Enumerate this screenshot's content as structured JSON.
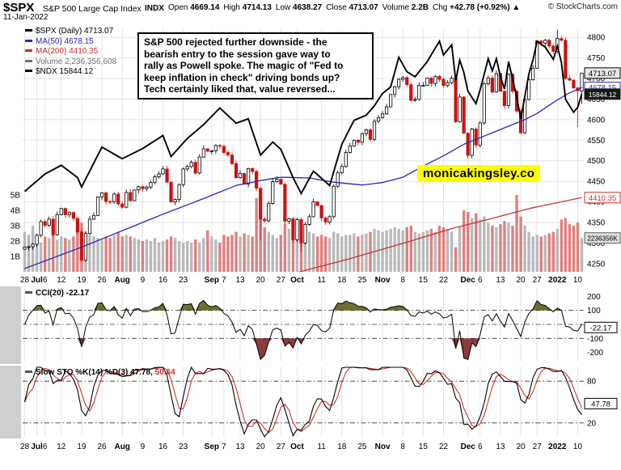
{
  "header": {
    "symbol": "$SPX",
    "index_name": "S&P 500 Large Cap Index",
    "exchange": "INDX",
    "date": "11-Jan-2022",
    "copyright": "© StockCharts.com",
    "quote_fields": [
      {
        "label": "Open",
        "value": "4669.14"
      },
      {
        "label": "High",
        "value": "4714.13"
      },
      {
        "label": "Low",
        "value": "4638.27"
      },
      {
        "label": "Close",
        "value": "4713.07"
      },
      {
        "label": "Volume",
        "value": "2.2B"
      },
      {
        "label": "Chg",
        "value": "+42.78 (+0.92%) ▲"
      }
    ]
  },
  "legend_rows": [
    {
      "label": "$SPX (Daily) 4713.07",
      "color": "#000000"
    },
    {
      "label": "MA(50) 4678.15",
      "color": "#2828b4"
    },
    {
      "label": "MA(200) 4410.35",
      "color": "#c83232"
    },
    {
      "label": "Volume 2,236,356,608",
      "color": "#707070"
    },
    {
      "label": "$NDX 15844.12",
      "color": "#000000"
    }
  ],
  "annotation": {
    "text_lines": [
      "S&P 500 rejected further downside - the",
      "bearish entry to the session gave way to",
      "rally as Powell spoke. The magic of \"Fed to",
      "keep inflation in check\" driving bonds up?",
      "Tech certainly liked that, value reversed..."
    ]
  },
  "watermark": {
    "text": "monicakingsley.co",
    "bg": "#ffff00"
  },
  "colors": {
    "up_candle": "#ffffff",
    "down_candle": "#cc1111",
    "ma50": "#2828b4",
    "ma200": "#c83232",
    "ndx": "#000000",
    "vol_up": "#b9b9b9",
    "vol_down": "#e07f7f",
    "grid": "#e4e4e4",
    "gutter": "#cfcfcf",
    "cci_fill_high": "#6f6f2c",
    "cci_fill_low": "#8c3a3a",
    "sto_k": "#000000",
    "sto_d": "#d23030"
  },
  "chart_data": [
    {
      "type": "candlestick",
      "title": "$SPX daily candlesticks with MA(50), MA(200), $NDX overlay and volume",
      "price_range": [
        4230,
        4820
      ],
      "y_ticks": [
        4250,
        4300,
        4350,
        4400,
        4450,
        4500,
        4550,
        4600,
        4650,
        4700,
        4750,
        4800
      ],
      "volume_ticks": [
        "1B",
        "2B",
        "3B",
        "4B",
        "5B"
      ],
      "x_ticks": [
        {
          "i": 0,
          "label": "28",
          "bold": false
        },
        {
          "i": 3,
          "label": "Jul",
          "bold": true
        },
        {
          "i": 5,
          "label": "6",
          "bold": false
        },
        {
          "i": 9,
          "label": "12",
          "bold": false
        },
        {
          "i": 14,
          "label": "19",
          "bold": false
        },
        {
          "i": 19,
          "label": "26",
          "bold": false
        },
        {
          "i": 24,
          "label": "Aug",
          "bold": true
        },
        {
          "i": 29,
          "label": "9",
          "bold": false
        },
        {
          "i": 34,
          "label": "16",
          "bold": false
        },
        {
          "i": 39,
          "label": "23",
          "bold": false
        },
        {
          "i": 46,
          "label": "Sep",
          "bold": true
        },
        {
          "i": 49,
          "label": "7",
          "bold": false
        },
        {
          "i": 53,
          "label": "13",
          "bold": false
        },
        {
          "i": 58,
          "label": "20",
          "bold": false
        },
        {
          "i": 63,
          "label": "27",
          "bold": false
        },
        {
          "i": 67,
          "label": "Oct",
          "bold": true
        },
        {
          "i": 73,
          "label": "11",
          "bold": false
        },
        {
          "i": 78,
          "label": "18",
          "bold": false
        },
        {
          "i": 83,
          "label": "25",
          "bold": false
        },
        {
          "i": 88,
          "label": "Nov",
          "bold": true
        },
        {
          "i": 93,
          "label": "8",
          "bold": false
        },
        {
          "i": 98,
          "label": "15",
          "bold": false
        },
        {
          "i": 103,
          "label": "22",
          "bold": false
        },
        {
          "i": 109,
          "label": "Dec",
          "bold": true
        },
        {
          "i": 112,
          "label": "6",
          "bold": false
        },
        {
          "i": 117,
          "label": "13",
          "bold": false
        },
        {
          "i": 122,
          "label": "20",
          "bold": false
        },
        {
          "i": 126,
          "label": "27",
          "bold": false
        },
        {
          "i": 131,
          "label": "2022",
          "bold": true
        },
        {
          "i": 136,
          "label": "10",
          "bold": false
        }
      ],
      "close": [
        4290,
        4291,
        4297,
        4319,
        4352,
        4343,
        4358,
        4320,
        4369,
        4384,
        4369,
        4374,
        4360,
        4327,
        4258,
        4323,
        4358,
        4367,
        4412,
        4422,
        4401,
        4400,
        4419,
        4395,
        4387,
        4423,
        4403,
        4429,
        4437,
        4432,
        4436,
        4447,
        4461,
        4468,
        4480,
        4448,
        4400,
        4406,
        4442,
        4480,
        4486,
        4496,
        4470,
        4509,
        4529,
        4523,
        4524,
        4537,
        4535,
        4520,
        4514,
        4493,
        4459,
        4469,
        4443,
        4481,
        4474,
        4433,
        4358,
        4354,
        4396,
        4449,
        4455,
        4443,
        4353,
        4359,
        4308,
        4357,
        4300,
        4345,
        4364,
        4400,
        4391,
        4361,
        4351,
        4364,
        4438,
        4471,
        4486,
        4520,
        4536,
        4550,
        4545,
        4566,
        4575,
        4552,
        4596,
        4605,
        4614,
        4631,
        4661,
        4680,
        4698,
        4702,
        4685,
        4647,
        4649,
        4683,
        4683,
        4701,
        4688,
        4705,
        4698,
        4683,
        4690,
        4701,
        4595,
        4655,
        4567,
        4513,
        4577,
        4538,
        4592,
        4687,
        4701,
        4667,
        4712,
        4669,
        4634,
        4710,
        4669,
        4621,
        4568,
        4649,
        4697,
        4725,
        4791,
        4786,
        4793,
        4779,
        4766,
        4797,
        4793,
        4700,
        4696,
        4677,
        4670,
        4713.07
      ],
      "volume_b": [
        2.6,
        2.4,
        3.0,
        2.2,
        1.9,
        2.3,
        2.2,
        2.4,
        2.1,
        2.3,
        2.2,
        2.1,
        2.3,
        2.9,
        3.2,
        2.6,
        2.4,
        2.3,
        2.2,
        2.1,
        2.3,
        2.2,
        2.4,
        2.6,
        2.3,
        2.4,
        2.3,
        2.2,
        2.1,
        2.0,
        2.1,
        2.0,
        2.2,
        1.9,
        2.0,
        2.1,
        2.3,
        2.2,
        2.0,
        1.9,
        2.0,
        1.9,
        2.1,
        1.9,
        2.2,
        2.7,
        2.3,
        2.1,
        1.9,
        2.4,
        2.3,
        2.4,
        2.6,
        2.3,
        2.5,
        2.4,
        2.3,
        4.8,
        3.5,
        2.9,
        2.6,
        2.4,
        2.2,
        2.4,
        3.1,
        2.8,
        3.4,
        3.0,
        2.8,
        2.7,
        2.6,
        2.5,
        2.3,
        2.4,
        2.3,
        2.2,
        2.6,
        2.5,
        2.3,
        2.4,
        2.4,
        2.5,
        2.3,
        2.4,
        2.5,
        2.6,
        2.8,
        2.7,
        2.6,
        2.7,
        2.8,
        2.9,
        2.8,
        2.7,
        2.9,
        3.0,
        2.6,
        2.5,
        2.6,
        2.7,
        2.8,
        2.6,
        3.0,
        2.9,
        2.8,
        2.6,
        1.6,
        2.9,
        4.0,
        3.9,
        3.5,
        3.8,
        3.4,
        3.6,
        3.2,
        3.0,
        2.9,
        3.1,
        3.3,
        3.2,
        3.0,
        5.0,
        3.6,
        3.0,
        2.6,
        2.3,
        2.4,
        2.3,
        2.4,
        2.5,
        2.6,
        2.8,
        3.4,
        3.5,
        3.1,
        3.0,
        3.2,
        2.2
      ],
      "ohlc_overrides": {
        "58": {
          "low": 4306
        },
        "68": {
          "low": 4279
        },
        "131": {
          "high": 4818.6
        },
        "136": {
          "low": 4582
        },
        "137": {
          "open": 4669.14,
          "high": 4714.13,
          "low": 4638.27,
          "close": 4713.07
        }
      },
      "ma50_points": [
        [
          0,
          4238
        ],
        [
          14,
          4290
        ],
        [
          24,
          4330
        ],
        [
          34,
          4370
        ],
        [
          44,
          4408
        ],
        [
          52,
          4440
        ],
        [
          58,
          4452
        ],
        [
          63,
          4460
        ],
        [
          70,
          4458
        ],
        [
          76,
          4448
        ],
        [
          83,
          4441
        ],
        [
          88,
          4447
        ],
        [
          93,
          4460
        ],
        [
          98,
          4487
        ],
        [
          103,
          4512
        ],
        [
          108,
          4540
        ],
        [
          113,
          4560
        ],
        [
          118,
          4580
        ],
        [
          123,
          4600
        ],
        [
          126,
          4615
        ],
        [
          129,
          4635
        ],
        [
          131,
          4648
        ],
        [
          134,
          4665
        ],
        [
          137,
          4678.15
        ]
      ],
      "ma200_points": [
        [
          0,
          4048
        ],
        [
          20,
          4105
        ],
        [
          40,
          4160
        ],
        [
          60,
          4210
        ],
        [
          80,
          4262
        ],
        [
          95,
          4305
        ],
        [
          105,
          4335
        ],
        [
          115,
          4360
        ],
        [
          125,
          4386
        ],
        [
          131,
          4398
        ],
        [
          137,
          4410.35
        ]
      ],
      "ndx_points": [
        [
          0,
          14500
        ],
        [
          5,
          14740
        ],
        [
          9,
          14860
        ],
        [
          13,
          14690
        ],
        [
          14,
          14560
        ],
        [
          19,
          15110
        ],
        [
          24,
          14950
        ],
        [
          29,
          15090
        ],
        [
          34,
          15270
        ],
        [
          36,
          14980
        ],
        [
          40,
          15230
        ],
        [
          44,
          15420
        ],
        [
          48,
          15650
        ],
        [
          52,
          15440
        ],
        [
          55,
          15500
        ],
        [
          58,
          15000
        ],
        [
          61,
          15180
        ],
        [
          63,
          15080
        ],
        [
          66,
          14690
        ],
        [
          68,
          14470
        ],
        [
          71,
          14780
        ],
        [
          75,
          14580
        ],
        [
          78,
          15150
        ],
        [
          81,
          15480
        ],
        [
          84,
          15550
        ],
        [
          86,
          15680
        ],
        [
          88,
          15850
        ],
        [
          90,
          15940
        ],
        [
          92,
          16350
        ],
        [
          94,
          16150
        ],
        [
          96,
          16080
        ],
        [
          99,
          16290
        ],
        [
          102,
          16570
        ],
        [
          103,
          16380
        ],
        [
          105,
          16520
        ],
        [
          106,
          16030
        ],
        [
          107,
          16310
        ],
        [
          108,
          16140
        ],
        [
          109,
          15880
        ],
        [
          111,
          15710
        ],
        [
          112,
          15900
        ],
        [
          114,
          16330
        ],
        [
          115,
          16160
        ],
        [
          116,
          16330
        ],
        [
          117,
          16080
        ],
        [
          118,
          15910
        ],
        [
          119,
          16290
        ],
        [
          121,
          15800
        ],
        [
          122,
          15500
        ],
        [
          124,
          16120
        ],
        [
          125,
          16310
        ],
        [
          126,
          16570
        ],
        [
          128,
          16490
        ],
        [
          130,
          16320
        ],
        [
          131,
          16500
        ],
        [
          132,
          16280
        ],
        [
          133,
          15770
        ],
        [
          135,
          15590
        ],
        [
          136,
          15660
        ],
        [
          137,
          15844.12
        ]
      ],
      "ndx_range": [
        13391,
        16737
      ],
      "axis_boxes": [
        {
          "text": "4713.07",
          "value": 4713.07,
          "bg": "#e8e8e8",
          "fg": "#000000",
          "border": "#000000"
        },
        {
          "text": "4678.15",
          "value": 4678.15,
          "bg": "#ffffff",
          "fg": "#2828b4",
          "border": "#2828b4"
        },
        {
          "text": "15844.12",
          "value": 4662,
          "bg": "#1a1a1a",
          "fg": "#ffffff",
          "border": "#1a1a1a"
        },
        {
          "text": "4410.35",
          "value": 4410.35,
          "bg": "#ffffff",
          "fg": "#c83232",
          "border": "#c83232"
        },
        {
          "text": "2236356K",
          "volume_value": 2.2,
          "bg": "#dcdcdc",
          "fg": "#000000",
          "border": "#666666"
        }
      ]
    },
    {
      "type": "line",
      "name": "CCI(20)",
      "label": "CCI(20) -22.17",
      "last_value": -22.17,
      "period": 20,
      "range": [
        -260,
        260
      ],
      "y_ticks": [
        200,
        100,
        0,
        -100,
        -200
      ],
      "threshold_lines": [
        100,
        0,
        -100
      ],
      "derived_from": "main close series"
    },
    {
      "type": "line",
      "name": "Slow Stochastic",
      "label_k": "Slow STO %K(14) %D(3) 47.78,",
      "label_d": "50.64",
      "k_last": 47.78,
      "d_last": 50.64,
      "k_period": 14,
      "d_period": 3,
      "range": [
        0,
        100
      ],
      "y_ticks": [
        80,
        20
      ],
      "threshold_lines": [
        80,
        20
      ],
      "derived_from": "main close series"
    }
  ]
}
